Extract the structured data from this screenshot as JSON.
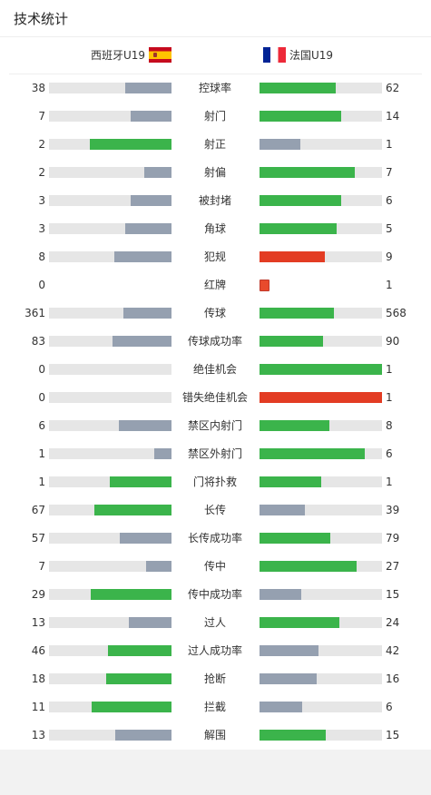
{
  "page": {
    "title": "技术统计"
  },
  "teams": {
    "home": "西班牙U19",
    "away": "法国U19"
  },
  "colors": {
    "win": "#3bb44b",
    "lose": "#95a0b0",
    "red": "#e33c23",
    "track": "#e6e6e6"
  },
  "stats": [
    {
      "label": "控球率",
      "home": "38",
      "away": "62",
      "home_ratio": 0.38,
      "away_ratio": 0.62,
      "home_color": "lose",
      "away_color": "win"
    },
    {
      "label": "射门",
      "home": "7",
      "away": "14",
      "home_ratio": 0.33,
      "away_ratio": 0.67,
      "home_color": "lose",
      "away_color": "win"
    },
    {
      "label": "射正",
      "home": "2",
      "away": "1",
      "home_ratio": 0.67,
      "away_ratio": 0.33,
      "home_color": "win",
      "away_color": "lose"
    },
    {
      "label": "射偏",
      "home": "2",
      "away": "7",
      "home_ratio": 0.22,
      "away_ratio": 0.78,
      "home_color": "lose",
      "away_color": "win"
    },
    {
      "label": "被封堵",
      "home": "3",
      "away": "6",
      "home_ratio": 0.33,
      "away_ratio": 0.67,
      "home_color": "lose",
      "away_color": "win"
    },
    {
      "label": "角球",
      "home": "3",
      "away": "5",
      "home_ratio": 0.38,
      "away_ratio": 0.63,
      "home_color": "lose",
      "away_color": "win"
    },
    {
      "label": "犯规",
      "home": "8",
      "away": "9",
      "home_ratio": 0.47,
      "away_ratio": 0.53,
      "home_color": "lose",
      "away_color": "red"
    },
    {
      "label": "红牌",
      "home": "0",
      "away": "1",
      "home_ratio": 0,
      "away_ratio": 0,
      "home_color": "lose",
      "away_color": "red",
      "card": true
    },
    {
      "label": "传球",
      "home": "361",
      "away": "568",
      "home_ratio": 0.39,
      "away_ratio": 0.61,
      "home_color": "lose",
      "away_color": "win"
    },
    {
      "label": "传球成功率",
      "home": "83",
      "away": "90",
      "home_ratio": 0.48,
      "away_ratio": 0.52,
      "home_color": "lose",
      "away_color": "win"
    },
    {
      "label": "绝佳机会",
      "home": "0",
      "away": "1",
      "home_ratio": 0,
      "away_ratio": 1,
      "home_color": "lose",
      "away_color": "win"
    },
    {
      "label": "错失绝佳机会",
      "home": "0",
      "away": "1",
      "home_ratio": 0,
      "away_ratio": 1,
      "home_color": "lose",
      "away_color": "red"
    },
    {
      "label": "禁区内射门",
      "home": "6",
      "away": "8",
      "home_ratio": 0.43,
      "away_ratio": 0.57,
      "home_color": "lose",
      "away_color": "win"
    },
    {
      "label": "禁区外射门",
      "home": "1",
      "away": "6",
      "home_ratio": 0.14,
      "away_ratio": 0.86,
      "home_color": "lose",
      "away_color": "win"
    },
    {
      "label": "门将扑救",
      "home": "1",
      "away": "1",
      "home_ratio": 0.5,
      "away_ratio": 0.5,
      "home_color": "win",
      "away_color": "win"
    },
    {
      "label": "长传",
      "home": "67",
      "away": "39",
      "home_ratio": 0.63,
      "away_ratio": 0.37,
      "home_color": "win",
      "away_color": "lose"
    },
    {
      "label": "长传成功率",
      "home": "57",
      "away": "79",
      "home_ratio": 0.42,
      "away_ratio": 0.58,
      "home_color": "lose",
      "away_color": "win"
    },
    {
      "label": "传中",
      "home": "7",
      "away": "27",
      "home_ratio": 0.21,
      "away_ratio": 0.79,
      "home_color": "lose",
      "away_color": "win"
    },
    {
      "label": "传中成功率",
      "home": "29",
      "away": "15",
      "home_ratio": 0.66,
      "away_ratio": 0.34,
      "home_color": "win",
      "away_color": "lose"
    },
    {
      "label": "过人",
      "home": "13",
      "away": "24",
      "home_ratio": 0.35,
      "away_ratio": 0.65,
      "home_color": "lose",
      "away_color": "win"
    },
    {
      "label": "过人成功率",
      "home": "46",
      "away": "42",
      "home_ratio": 0.52,
      "away_ratio": 0.48,
      "home_color": "win",
      "away_color": "lose"
    },
    {
      "label": "抢断",
      "home": "18",
      "away": "16",
      "home_ratio": 0.53,
      "away_ratio": 0.47,
      "home_color": "win",
      "away_color": "lose"
    },
    {
      "label": "拦截",
      "home": "11",
      "away": "6",
      "home_ratio": 0.65,
      "away_ratio": 0.35,
      "home_color": "win",
      "away_color": "lose"
    },
    {
      "label": "解围",
      "home": "13",
      "away": "15",
      "home_ratio": 0.46,
      "away_ratio": 0.54,
      "home_color": "lose",
      "away_color": "win"
    }
  ]
}
